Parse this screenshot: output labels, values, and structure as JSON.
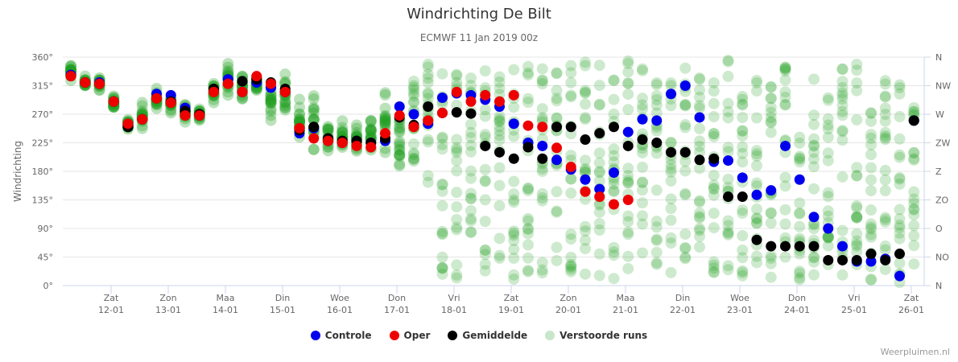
{
  "chart_data": {
    "type": "scatter",
    "title": "Windrichting De Bilt",
    "subtitle": "ECMWF 11 Jan 2019 00z",
    "ylabel": "Windrichting",
    "ylim": [
      0,
      360
    ],
    "y_ticks": [
      "0°",
      "45°",
      "90°",
      "135°",
      "180°",
      "225°",
      "270°",
      "315°",
      "360°"
    ],
    "y2_ticks": [
      "N",
      "NO",
      "O",
      "ZO",
      "Z",
      "ZW",
      "W",
      "NW",
      "N"
    ],
    "x_ticks": [
      {
        "day": "Zat",
        "date": "12-01"
      },
      {
        "day": "Zon",
        "date": "13-01"
      },
      {
        "day": "Maa",
        "date": "14-01"
      },
      {
        "day": "Din",
        "date": "15-01"
      },
      {
        "day": "Woe",
        "date": "16-01"
      },
      {
        "day": "Don",
        "date": "17-01"
      },
      {
        "day": "Vri",
        "date": "18-01"
      },
      {
        "day": "Zat",
        "date": "19-01"
      },
      {
        "day": "Zon",
        "date": "20-01"
      },
      {
        "day": "Maa",
        "date": "21-01"
      },
      {
        "day": "Din",
        "date": "22-01"
      },
      {
        "day": "Woe",
        "date": "23-01"
      },
      {
        "day": "Don",
        "date": "24-01"
      },
      {
        "day": "Vri",
        "date": "25-01"
      },
      {
        "day": "Zat",
        "date": "26-01"
      }
    ],
    "x_step_hours": 6,
    "x_start": "11-01 06z",
    "series": [
      {
        "name": "Controle",
        "color": "#0000ee",
        "values": [
          332,
          320,
          320,
          290,
          252,
          262,
          302,
          300,
          280,
          268,
          308,
          325,
          305,
          320,
          312,
          305,
          240,
          248,
          228,
          225,
          228,
          225,
          228,
          282,
          270,
          255,
          296,
          303,
          300,
          293,
          282,
          255,
          225,
          220,
          198,
          183,
          167,
          152,
          178,
          242,
          262,
          260,
          302,
          315,
          265,
          195,
          197,
          170,
          143,
          150,
          220,
          167,
          108,
          90,
          62,
          38,
          38,
          42,
          15,
          260
        ]
      },
      {
        "name": "Oper",
        "color": "#ee0000",
        "values": [
          330,
          320,
          318,
          290,
          255,
          262,
          295,
          288,
          268,
          268,
          305,
          318,
          305,
          330,
          318,
          305,
          248,
          232,
          228,
          225,
          220,
          218,
          240,
          268,
          250,
          260,
          272,
          305,
          290,
          300,
          290,
          300,
          252,
          250,
          217,
          187,
          148,
          140,
          128,
          135
        ]
      },
      {
        "name": "Gemiddelde",
        "color": "#000000",
        "values": [
          330,
          320,
          318,
          290,
          250,
          262,
          295,
          290,
          275,
          270,
          310,
          318,
          322,
          325,
          320,
          310,
          245,
          250,
          232,
          228,
          228,
          225,
          232,
          265,
          253,
          282,
          272,
          273,
          271,
          220,
          210,
          200,
          218,
          200,
          250,
          250,
          230,
          240,
          250,
          220,
          230,
          225,
          210,
          210,
          198,
          200,
          140,
          140,
          72,
          62,
          62,
          62,
          62,
          40,
          40,
          40,
          50,
          40,
          50,
          260
        ]
      },
      {
        "name": "Verstoorde runs",
        "color": "#2ca02c",
        "opacity": 0.2,
        "spread": [
          [
            322,
            352
          ],
          [
            305,
            332
          ],
          [
            305,
            330
          ],
          [
            280,
            300
          ],
          [
            240,
            265
          ],
          [
            240,
            290
          ],
          [
            275,
            312
          ],
          [
            265,
            310
          ],
          [
            250,
            290
          ],
          [
            255,
            280
          ],
          [
            285,
            320
          ],
          [
            295,
            355
          ],
          [
            285,
            335
          ],
          [
            290,
            345
          ],
          [
            250,
            330
          ],
          [
            250,
            335
          ],
          [
            210,
            310
          ],
          [
            205,
            305
          ],
          [
            205,
            260
          ],
          [
            205,
            265
          ],
          [
            205,
            255
          ],
          [
            205,
            285
          ],
          [
            205,
            310
          ],
          [
            150,
            320
          ],
          [
            195,
            335
          ],
          [
            160,
            355
          ],
          [
            15,
            340
          ],
          [
            5,
            345
          ],
          [
            70,
            350
          ],
          [
            10,
            355
          ],
          [
            15,
            350
          ],
          [
            10,
            345
          ],
          [
            10,
            350
          ],
          [
            20,
            355
          ],
          [
            5,
            355
          ],
          [
            10,
            355
          ],
          [
            5,
            355
          ],
          [
            5,
            355
          ],
          [
            10,
            355
          ],
          [
            10,
            360
          ],
          [
            30,
            345
          ],
          [
            30,
            350
          ],
          [
            15,
            345
          ],
          [
            10,
            355
          ],
          [
            20,
            340
          ],
          [
            20,
            330
          ],
          [
            15,
            355
          ],
          [
            15,
            320
          ],
          [
            10,
            330
          ],
          [
            10,
            330
          ],
          [
            5,
            350
          ],
          [
            5,
            285
          ],
          [
            5,
            350
          ],
          [
            5,
            350
          ],
          [
            5,
            355
          ],
          [
            5,
            355
          ],
          [
            5,
            335
          ],
          [
            5,
            330
          ],
          [
            5,
            320
          ],
          [
            5,
            330
          ]
        ]
      }
    ]
  },
  "legend": [
    {
      "label": "Controle",
      "color": "#0000ee"
    },
    {
      "label": "Oper",
      "color": "#ee0000"
    },
    {
      "label": "Gemiddelde",
      "color": "#000000"
    },
    {
      "label": "Verstoorde runs",
      "color": "#c8e6c9"
    }
  ],
  "credit": "Weerpluimen.nl"
}
